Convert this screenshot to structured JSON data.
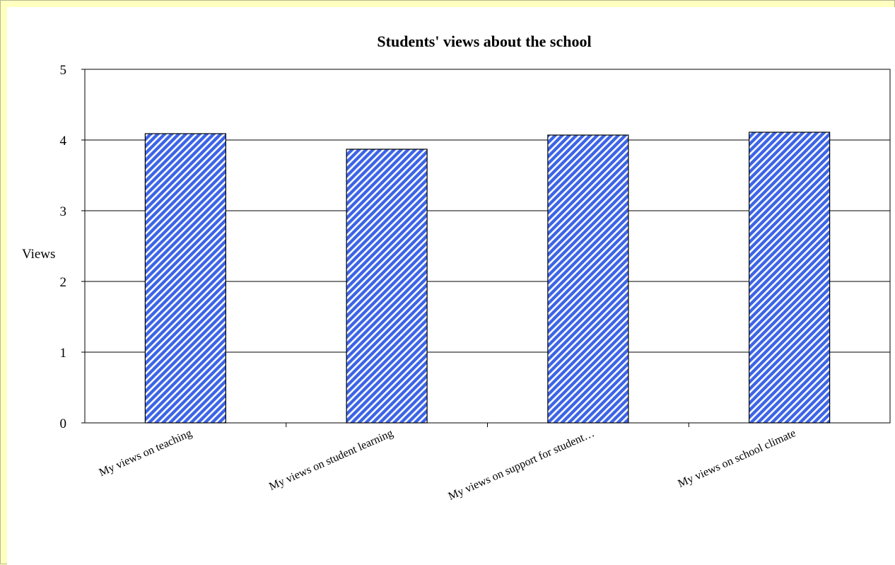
{
  "chart_data": {
    "type": "bar",
    "title": "Students' views about the school",
    "ylabel": "Views",
    "xlabel": "",
    "ylim": [
      0,
      5
    ],
    "yticks": [
      0,
      1,
      2,
      3,
      4,
      5
    ],
    "grid": true,
    "categories": [
      "My views on teaching",
      "My views on student learning",
      "My views on support for student…",
      "My views on school climate"
    ],
    "values": [
      4.09,
      3.87,
      4.07,
      4.11
    ],
    "bar_color": "#3c64e6",
    "bar_pattern": "diagonal-hatch",
    "legend": "none"
  }
}
